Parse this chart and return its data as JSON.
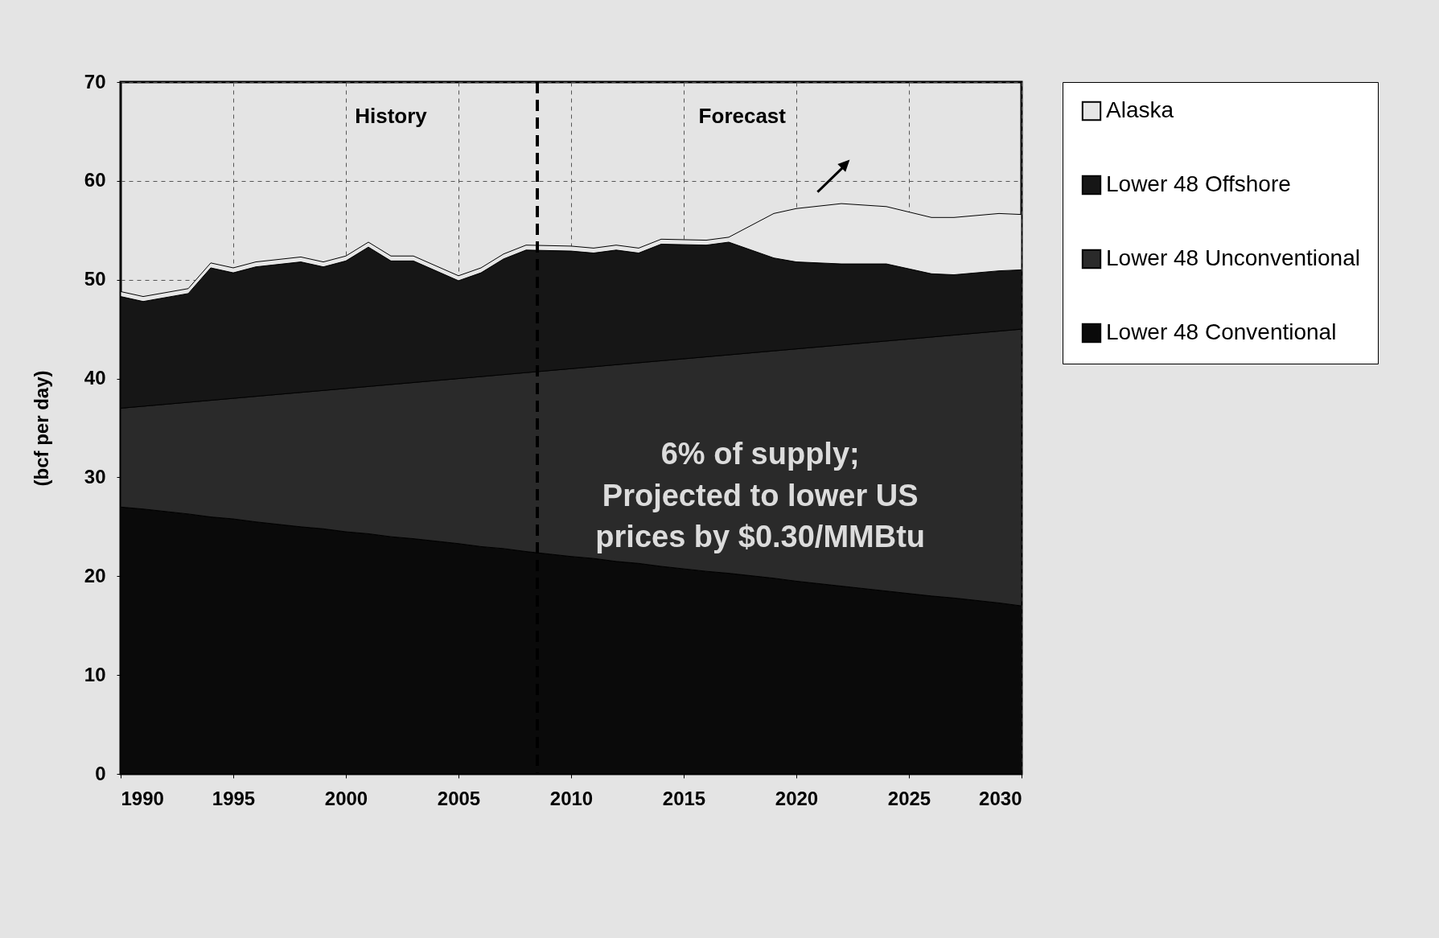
{
  "chart_data": {
    "type": "area",
    "stacked": true,
    "x": [
      1990,
      1991,
      1993,
      1994,
      1995,
      1996,
      1998,
      1999,
      2000,
      2001,
      2002,
      2003,
      2005,
      2006,
      2007,
      2008,
      2010,
      2011,
      2012,
      2013,
      2014,
      2016,
      2017,
      2019,
      2020,
      2022,
      2024,
      2026,
      2027,
      2029,
      2030
    ],
    "series": [
      {
        "name": "Lower 48 Conventional",
        "color": "#0a0a0a",
        "values": [
          27,
          26.8,
          26.3,
          26,
          25.8,
          25.5,
          25,
          24.8,
          24.5,
          24.3,
          24,
          23.8,
          23.3,
          23,
          22.8,
          22.5,
          22,
          21.8,
          21.5,
          21.3,
          21,
          20.5,
          20.3,
          19.8,
          19.5,
          19,
          18.5,
          18,
          17.8,
          17.3,
          17
        ]
      },
      {
        "name": "Lower 48 Unconventional",
        "color": "#2a2a2a",
        "values": [
          10,
          10.4,
          11.3,
          11.8,
          12.2,
          12.7,
          13.6,
          14,
          14.5,
          14.9,
          15.4,
          15.8,
          16.7,
          17.2,
          17.6,
          18.1,
          19,
          19.4,
          19.9,
          20.3,
          20.8,
          21.7,
          22.1,
          23,
          23.5,
          24.4,
          25.3,
          26.2,
          26.6,
          27.5,
          28
        ]
      },
      {
        "name": "Lower 48 Offshore",
        "color": "#161616",
        "values": [
          11.3,
          10.6,
          11,
          13.4,
          12.7,
          13.1,
          13.2,
          12.5,
          12.9,
          14.1,
          12.5,
          12.3,
          9.9,
          10.5,
          11.7,
          12.4,
          11.9,
          11.5,
          11.6,
          11.1,
          11.8,
          11.3,
          11.4,
          9.4,
          8.8,
          8.2,
          7.8,
          6.4,
          6.1,
          6.1,
          6
        ]
      },
      {
        "name": "Alaska",
        "color": "#e6e6e6",
        "values": [
          0.5,
          0.5,
          0.5,
          0.5,
          0.5,
          0.5,
          0.5,
          0.5,
          0.5,
          0.5,
          0.5,
          0.5,
          0.5,
          0.5,
          0.5,
          0.5,
          0.5,
          0.5,
          0.5,
          0.5,
          0.5,
          0.5,
          0.5,
          4.5,
          5.4,
          6.1,
          5.8,
          5.7,
          5.8,
          5.8,
          5.6
        ]
      }
    ],
    "ylabel": "(bcf per day)",
    "xlim": [
      1990,
      2030
    ],
    "xticks": [
      1990,
      1995,
      2000,
      2005,
      2010,
      2015,
      2020,
      2025,
      2030
    ],
    "ylim": [
      0,
      70
    ],
    "yticks": [
      0,
      10,
      20,
      30,
      40,
      50,
      60,
      70
    ],
    "grid": true,
    "legend": "right",
    "ref_lines": [
      {
        "axis": "x",
        "value": 2008.5,
        "line_style": "dashed",
        "color": "#000000"
      }
    ],
    "annotations": [
      "History",
      "Forecast",
      "6% of supply;\nProjected to lower US\nprices by $0.30/MMBtu"
    ]
  }
}
